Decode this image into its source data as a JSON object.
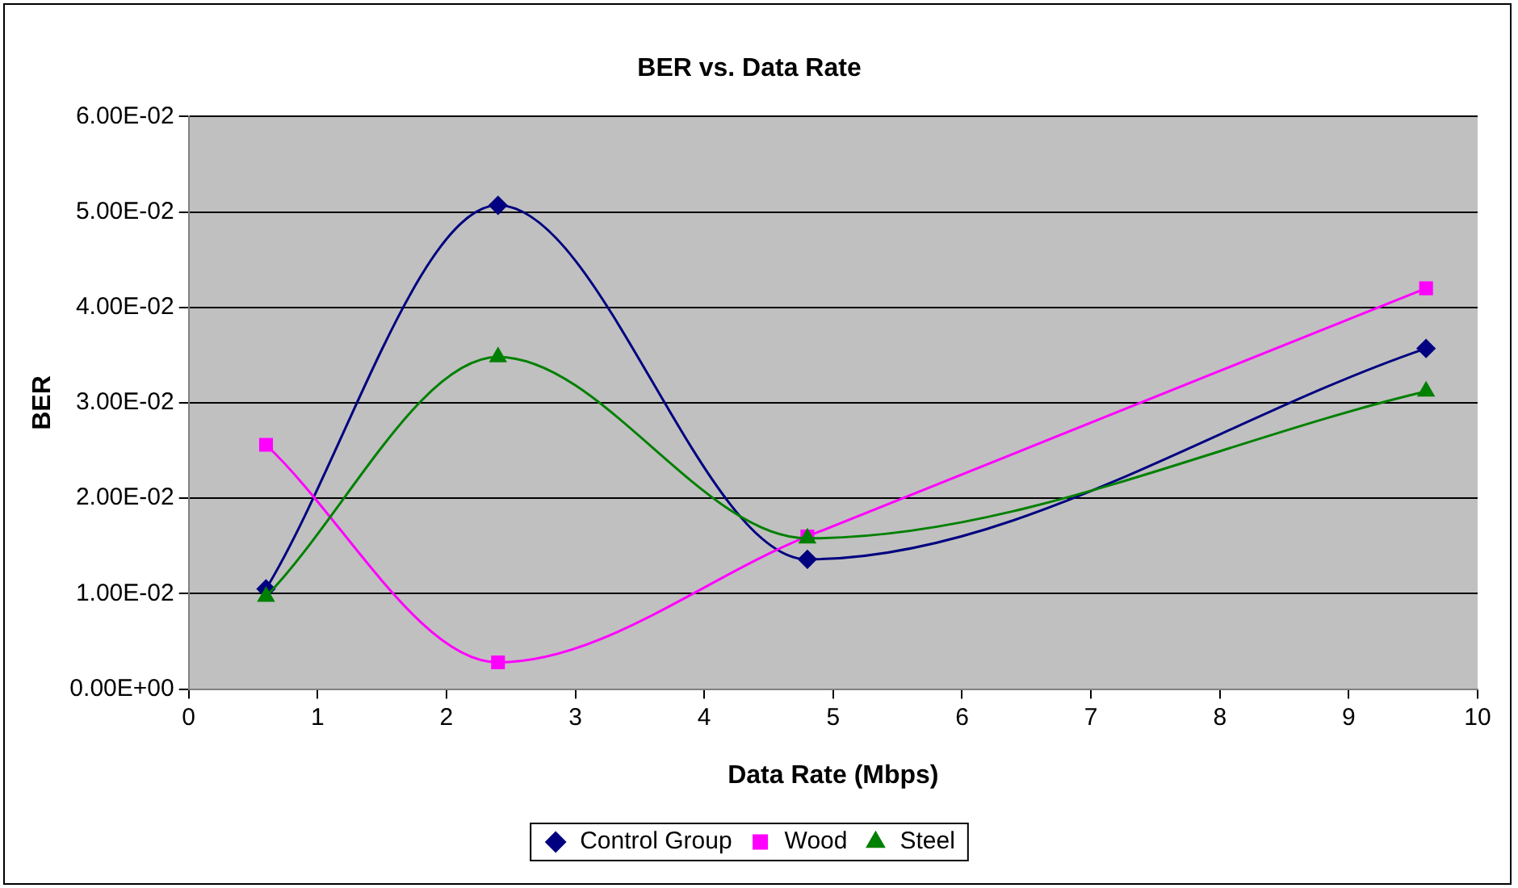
{
  "chart_data": {
    "type": "line",
    "title": "BER vs. Data Rate",
    "xlabel": "Data Rate (Mbps)",
    "ylabel": "BER",
    "x": [
      0.6,
      2.4,
      4.8,
      9.6
    ],
    "series": [
      {
        "name": "Control Group",
        "color": "#000080",
        "marker": "diamond",
        "values": [
          0.0105,
          0.0507,
          0.0136,
          0.0357
        ]
      },
      {
        "name": "Wood",
        "color": "#ff00ff",
        "marker": "square",
        "values": [
          0.0256,
          0.0028,
          0.016,
          0.042
        ]
      },
      {
        "name": "Steel",
        "color": "#008000",
        "marker": "triangle",
        "values": [
          0.0097,
          0.0348,
          0.0158,
          0.0312
        ]
      }
    ],
    "xlim": [
      0,
      10
    ],
    "xticks": [
      0,
      1,
      2,
      3,
      4,
      5,
      6,
      7,
      8,
      9,
      10
    ],
    "ylim": [
      0,
      0.06
    ],
    "yticks": [
      {
        "value": 0,
        "label": "0.00E+00"
      },
      {
        "value": 0.01,
        "label": "1.00E-02"
      },
      {
        "value": 0.02,
        "label": "2.00E-02"
      },
      {
        "value": 0.03,
        "label": "3.00E-02"
      },
      {
        "value": 0.04,
        "label": "4.00E-02"
      },
      {
        "value": 0.05,
        "label": "5.00E-02"
      },
      {
        "value": 0.06,
        "label": "6.00E-02"
      }
    ],
    "grid": "y",
    "legend": "bottom",
    "line_style": "solid"
  }
}
